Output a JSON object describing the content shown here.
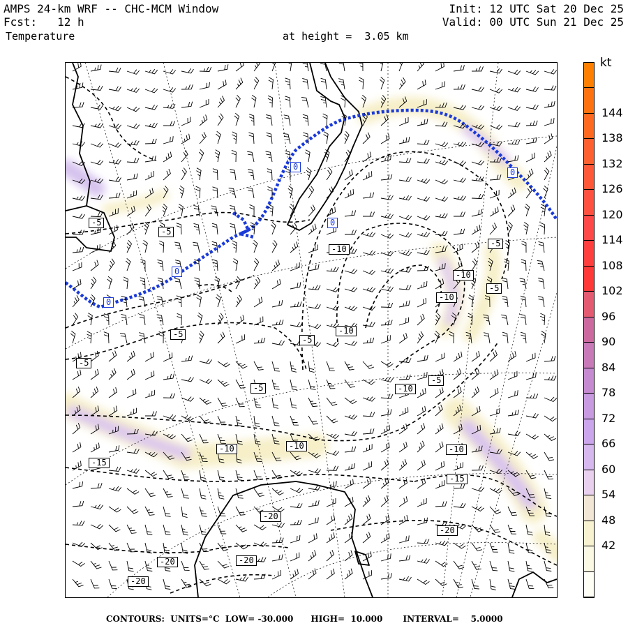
{
  "header": {
    "title": "AMPS 24-km WRF -- CHC-MCM Window",
    "forecast": "Fcst:   12 h",
    "variable": "Temperature",
    "init": "Init: 12 UTC Sat 20 Dec 25",
    "valid": "Valid: 00 UTC Sun 21 Dec 25",
    "level": "at height =  3.05 km"
  },
  "colorbar": {
    "unit": "kt",
    "ticks": [
      "144",
      "138",
      "132",
      "126",
      "120",
      "114",
      "108",
      "102",
      "96",
      "90",
      "84",
      "78",
      "72",
      "66",
      "60",
      "54",
      "48",
      "42"
    ],
    "colors": [
      "#ff7f00",
      "#ff7210",
      "#ff6a20",
      "#ff6030",
      "#ff5838",
      "#ff5040",
      "#ff4848",
      "#ff3e3e",
      "#ff3838",
      "#e45a70",
      "#cc6aa0",
      "#c87ab8",
      "#c68ad0",
      "#c89ae0",
      "#cca6ec",
      "#d6b8ee",
      "#e8d0ee",
      "#f2e6d6",
      "#f8f2d0",
      "#fbf8e4",
      "#fffff6"
    ]
  },
  "contour_labels": [
    {
      "text": "0",
      "kind": "zero"
    },
    {
      "text": "0",
      "kind": "zero"
    },
    {
      "text": "0",
      "kind": "zero"
    },
    {
      "text": "0",
      "kind": "zero"
    },
    {
      "text": "0",
      "kind": "zero"
    },
    {
      "text": "-5",
      "kind": "neg"
    },
    {
      "text": "-5",
      "kind": "neg"
    },
    {
      "text": "-5",
      "kind": "neg"
    },
    {
      "text": "-5",
      "kind": "neg"
    },
    {
      "text": "-5",
      "kind": "neg"
    },
    {
      "text": "-5",
      "kind": "neg"
    },
    {
      "text": "-5",
      "kind": "neg"
    },
    {
      "text": "-5",
      "kind": "neg"
    },
    {
      "text": "-5",
      "kind": "neg"
    },
    {
      "text": "-10",
      "kind": "neg"
    },
    {
      "text": "-10",
      "kind": "neg"
    },
    {
      "text": "-10",
      "kind": "neg"
    },
    {
      "text": "-10",
      "kind": "neg"
    },
    {
      "text": "-10",
      "kind": "neg"
    },
    {
      "text": "-10",
      "kind": "neg"
    },
    {
      "text": "-10",
      "kind": "neg"
    },
    {
      "text": "-10",
      "kind": "neg"
    },
    {
      "text": "-15",
      "kind": "neg"
    },
    {
      "text": "-15",
      "kind": "neg"
    },
    {
      "text": "-20",
      "kind": "neg"
    },
    {
      "text": "-20",
      "kind": "neg"
    },
    {
      "text": "-20",
      "kind": "neg"
    },
    {
      "text": "-20",
      "kind": "neg"
    },
    {
      "text": "-20",
      "kind": "neg"
    }
  ],
  "contours": {
    "units_label": "CONTOURS:  UNITS=°C  LOW= -30.000      HIGH=  10.000       INTERVAL=    5.0000"
  }
}
